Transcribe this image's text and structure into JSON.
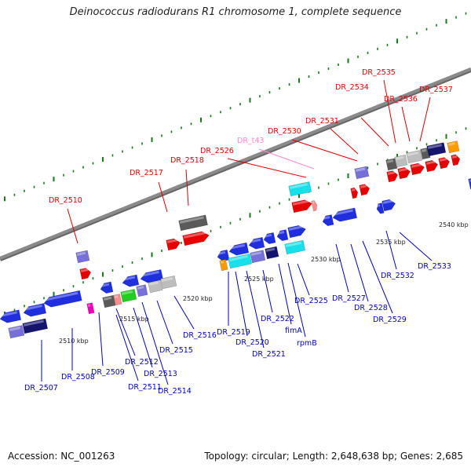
{
  "title": "Deinococcus radiodurans R1 chromosome 1, complete sequence",
  "footer": {
    "accession": "Accession: NC_001263",
    "summary": "Topology: circular; Length: 2,648,638 bp; Genes: 2,685"
  },
  "colors": {
    "background": "#ffffff",
    "backbone": "#8a8a8a",
    "tick": "#1a7a1a",
    "upper_label": "#dd0000",
    "lower_label": "#0000bb",
    "trna_label": "#ff88cc",
    "blue": "#1f2fe0",
    "red": "#e60000",
    "cyan": "#16e0ea",
    "purple": "#7670d8",
    "navy": "#14146e",
    "gray_dark": "#5a5a5a",
    "gray_light": "#bdbdbd",
    "orange": "#ff9a00",
    "magenta": "#ee00bb",
    "green": "#22cc22",
    "salmon": "#ff8c8c"
  },
  "kbp_labels": [
    "2510 kbp",
    "2515 kbp",
    "2520 kbp",
    "2525 kbp",
    "2530 kbp",
    "2535 kbp",
    "2540 kbp"
  ],
  "upper_labels": [
    "DR_2510",
    "DR_2517",
    "DR_2518",
    "DR_2526",
    "DR_t43",
    "DR_2530",
    "DR_2531",
    "DR_2534",
    "DR_2535",
    "DR_2536",
    "DR_2537"
  ],
  "lower_labels": [
    "DR_2507",
    "DR_2508",
    "DR_2509",
    "DR_2511",
    "DR_2512",
    "DR_2513",
    "DR_2514",
    "DR_2515",
    "DR_2516",
    "DR_2519",
    "DR_2520",
    "DR_2521",
    "DR_2522",
    "fimA",
    "rpmB",
    "DR_2525",
    "DR_2527",
    "DR_2528",
    "DR_2529",
    "DR_2532",
    "DR_2533"
  ]
}
